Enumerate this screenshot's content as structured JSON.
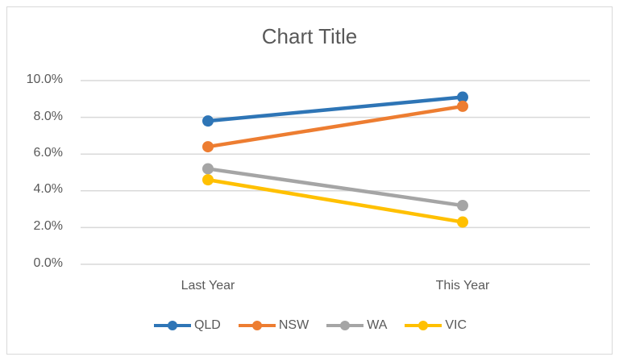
{
  "chart_data": {
    "type": "line",
    "title": "Chart Title",
    "xlabel": "",
    "ylabel": "",
    "categories": [
      "Last Year",
      "This Year"
    ],
    "yticks": [
      "0.0%",
      "2.0%",
      "4.0%",
      "6.0%",
      "8.0%",
      "10.0%"
    ],
    "ylim": [
      0,
      10
    ],
    "grid": true,
    "legend_position": "bottom",
    "series": [
      {
        "name": "QLD",
        "values": [
          7.8,
          9.1
        ],
        "color": "#2e75b6"
      },
      {
        "name": "NSW",
        "values": [
          6.4,
          8.6
        ],
        "color": "#ed7d31"
      },
      {
        "name": "WA",
        "values": [
          5.2,
          3.2
        ],
        "color": "#a5a5a5"
      },
      {
        "name": "VIC",
        "values": [
          4.6,
          2.3
        ],
        "color": "#ffc000"
      }
    ]
  }
}
